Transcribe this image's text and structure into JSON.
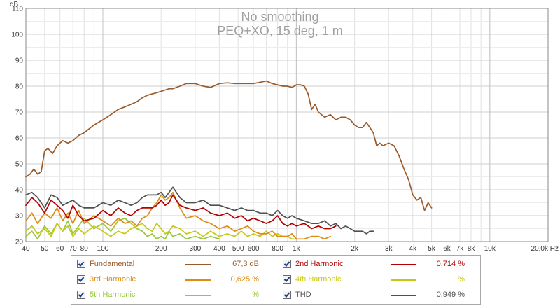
{
  "chart_data": {
    "type": "line",
    "title": "No smoothing",
    "subtitle": "PEQ+XO, 15 deg, 1 m",
    "ylabel": "dB",
    "xunit": "Hz",
    "xscale": "log",
    "xlim": [
      40,
      20000
    ],
    "ylim": [
      20,
      110
    ],
    "yticks": [
      20,
      30,
      40,
      50,
      60,
      70,
      80,
      90,
      100,
      110
    ],
    "yticklabels": [
      "20",
      "30",
      "40",
      "50",
      "60",
      "70",
      "80",
      "90",
      "100",
      "110"
    ],
    "xticks": [
      40,
      50,
      60,
      70,
      80,
      100,
      200,
      300,
      400,
      500,
      600,
      800,
      1000,
      2000,
      3000,
      4000,
      5000,
      6000,
      7000,
      8000,
      10000,
      20000
    ],
    "xticklabels": [
      "40",
      "50",
      "60",
      "70",
      "80",
      "100",
      "200",
      "300",
      "400",
      "500",
      "600",
      "800",
      "1k",
      "2k",
      "3k",
      "4k",
      "5k",
      "6k",
      "7k",
      "8k",
      "10k",
      "20,0k Hz"
    ],
    "grid": true,
    "legend_position": "bottom",
    "series": [
      {
        "name": "Fundamental",
        "color": "#9a5a2a",
        "value_label": "67,3 dB",
        "x": [
          40,
          42,
          44,
          46,
          48,
          50,
          52,
          55,
          58,
          62,
          66,
          70,
          75,
          80,
          90,
          100,
          110,
          120,
          130,
          140,
          150,
          160,
          170,
          180,
          190,
          200,
          210,
          220,
          230,
          250,
          270,
          300,
          330,
          360,
          400,
          440,
          480,
          520,
          560,
          600,
          650,
          700,
          750,
          800,
          850,
          900,
          950,
          1000,
          1050,
          1100,
          1150,
          1200,
          1250,
          1300,
          1400,
          1500,
          1600,
          1700,
          1800,
          1900,
          2000,
          2100,
          2200,
          2300,
          2400,
          2500,
          2600,
          2700,
          2800,
          3000,
          3200,
          3400,
          3600,
          3800,
          4000,
          4200,
          4400,
          4600,
          4800,
          5000
        ],
        "y": [
          45,
          46,
          48,
          46,
          47,
          55,
          56,
          54,
          57,
          59,
          58,
          59,
          61,
          62,
          65,
          67,
          69,
          71,
          72,
          73,
          74,
          75.5,
          76.5,
          77,
          77.5,
          78,
          78.5,
          79,
          79,
          80,
          81,
          81,
          80,
          79.5,
          81,
          81.3,
          81,
          81,
          81,
          81,
          81.5,
          82,
          81,
          80.5,
          80,
          80,
          79.5,
          80.5,
          80.5,
          80,
          77,
          71,
          73,
          70,
          68,
          69,
          67,
          68,
          68,
          67,
          65,
          64,
          64,
          66,
          64,
          62,
          57,
          58,
          57,
          58,
          57,
          53,
          48,
          44,
          38,
          36,
          37,
          32,
          35,
          33
        ]
      },
      {
        "name": "2nd Harmonic",
        "color": "#b40000",
        "value_label": "0,714 %",
        "x": [
          40,
          43,
          46,
          50,
          54,
          58,
          62,
          66,
          70,
          75,
          80,
          90,
          100,
          110,
          120,
          130,
          140,
          150,
          160,
          170,
          180,
          190,
          200,
          210,
          220,
          230,
          250,
          270,
          300,
          330,
          360,
          400,
          440,
          480,
          520,
          560,
          600,
          650,
          700,
          750,
          800,
          850,
          900,
          950,
          1000,
          1100,
          1200,
          1300,
          1400,
          1500,
          1600
        ],
        "y": [
          34,
          37,
          35,
          31,
          36,
          34,
          32,
          29,
          34,
          30,
          28,
          29,
          32,
          30,
          33,
          31,
          30,
          32,
          33,
          33,
          33,
          34,
          36,
          34,
          35,
          38,
          34,
          33,
          32,
          33,
          31,
          30,
          31,
          29,
          30,
          28,
          29,
          28,
          27,
          28,
          30,
          27,
          26,
          27,
          26,
          27,
          25,
          26,
          25,
          25,
          26
        ]
      },
      {
        "name": "3rd Harmonic",
        "color": "#dc8c14",
        "value_label": "0,625 %",
        "x": [
          40,
          43,
          46,
          50,
          54,
          58,
          62,
          66,
          70,
          75,
          80,
          90,
          100,
          110,
          120,
          130,
          140,
          150,
          160,
          170,
          180,
          190,
          200,
          210,
          220,
          230,
          250,
          270,
          300,
          330,
          360,
          400,
          440,
          480,
          520,
          560,
          600,
          650,
          700,
          750,
          800,
          850,
          900,
          950,
          1000,
          1100,
          1200,
          1300,
          1400,
          1500
        ],
        "y": [
          28,
          31,
          27,
          31,
          29,
          33,
          28,
          31,
          27,
          32,
          27,
          30,
          28,
          26,
          29,
          27,
          28,
          26,
          29,
          30,
          33,
          35,
          38,
          36,
          37,
          39,
          33,
          29,
          30,
          28,
          27,
          25,
          26,
          24,
          25,
          26,
          24,
          23,
          23,
          24,
          22,
          22,
          22,
          23,
          21,
          21,
          22,
          22,
          21,
          22
        ]
      },
      {
        "name": "4th Harmonic",
        "color": "#c8c814",
        "value_label": "%",
        "x": [
          40,
          43,
          46,
          50,
          54,
          58,
          62,
          66,
          70,
          75,
          80,
          90,
          100,
          110,
          120,
          130,
          140,
          150,
          160,
          170,
          180,
          190,
          200,
          210,
          220,
          230,
          250,
          270,
          300,
          330,
          360,
          400,
          440,
          480,
          520,
          560,
          600,
          650,
          700,
          750,
          800,
          850,
          900,
          950,
          1000
        ],
        "y": [
          24,
          26,
          23,
          25,
          22,
          27,
          24,
          26,
          22,
          25,
          23,
          26,
          24,
          22,
          24,
          23,
          25,
          26,
          27,
          25,
          24,
          27,
          25,
          23,
          24,
          26,
          25,
          23,
          24,
          22,
          24,
          22,
          23,
          22,
          24,
          22,
          23,
          22,
          24,
          22,
          23,
          22,
          22,
          21,
          21
        ]
      },
      {
        "name": "5th Harmonic",
        "color": "#96c83c",
        "value_label": "%",
        "x": [
          40,
          43,
          46,
          50,
          54,
          58,
          62,
          66,
          70,
          75,
          80,
          90,
          100,
          110,
          120,
          130,
          140,
          150,
          160,
          170,
          180,
          190,
          200,
          210,
          220,
          230,
          250,
          270,
          300,
          330,
          360,
          400
        ],
        "y": [
          22,
          24,
          21,
          26,
          23,
          27,
          24,
          28,
          23,
          26,
          29,
          25,
          27,
          24,
          28,
          29,
          27,
          25,
          24,
          22,
          23,
          21,
          22,
          21,
          24,
          22,
          23,
          21,
          22,
          21,
          22,
          21
        ]
      },
      {
        "name": "THD",
        "color": "#505050",
        "value_label": "0,949 %",
        "x": [
          40,
          43,
          46,
          50,
          54,
          58,
          62,
          66,
          70,
          75,
          80,
          90,
          100,
          110,
          120,
          130,
          140,
          150,
          160,
          170,
          180,
          190,
          200,
          210,
          220,
          230,
          250,
          270,
          300,
          330,
          360,
          400,
          440,
          480,
          520,
          560,
          600,
          650,
          700,
          750,
          800,
          850,
          900,
          950,
          1000,
          1100,
          1200,
          1300,
          1400,
          1500,
          1600,
          1700,
          1800,
          1900,
          2000,
          2100,
          2200,
          2300,
          2400,
          2500
        ],
        "y": [
          38,
          39,
          37,
          33,
          38,
          37,
          34,
          35,
          36,
          34,
          33,
          33,
          35,
          34,
          36,
          35,
          34,
          35,
          37,
          38,
          38,
          38,
          39,
          37,
          39,
          41,
          37,
          35,
          35,
          36,
          34,
          34,
          33,
          32,
          33,
          32,
          32,
          31,
          31,
          30,
          32,
          30,
          29,
          30,
          29,
          28,
          27,
          27,
          28,
          26,
          27,
          25,
          26,
          25,
          24,
          24,
          24,
          23,
          24,
          24
        ]
      }
    ]
  }
}
